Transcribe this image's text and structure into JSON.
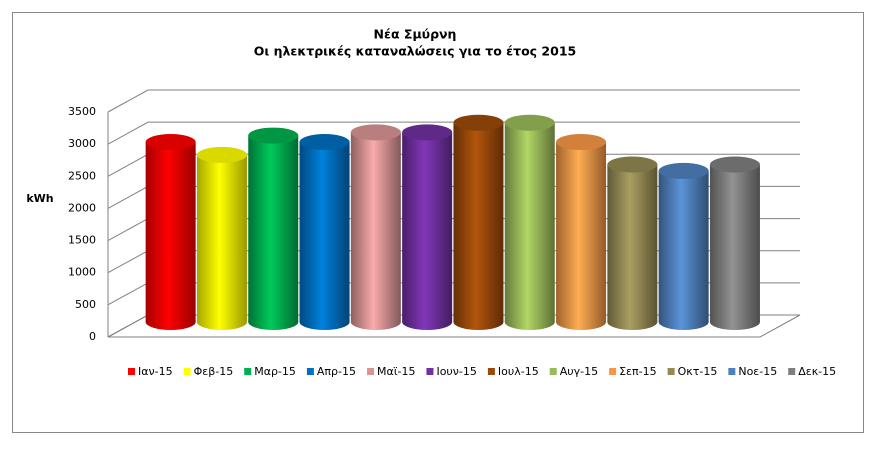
{
  "chart_data": {
    "type": "bar",
    "title": "Νέα Σμύρνη",
    "subtitle": "Οι ηλεκτρικές καταναλώσεις για το έτος 2015",
    "y_label": "kWh",
    "categories": [
      "Ιαν-15",
      "Φεβ-15",
      "Μαρ-15",
      "Απρ-15",
      "Μαϊ-15",
      "Ιουν-15",
      "Ιουλ-15",
      "Αυγ-15",
      "Σεπ-15",
      "Οκτ-15",
      "Νοε-15",
      "Δεκ-15"
    ],
    "values": [
      2800,
      2600,
      2900,
      2800,
      2950,
      2950,
      3100,
      3100,
      2800,
      2450,
      2350,
      2450
    ],
    "colors": [
      "#ff0000",
      "#ffff00",
      "#00b050",
      "#0070c0",
      "#d99594",
      "#7030a0",
      "#9c4a0a",
      "#9bbb59",
      "#f79646",
      "#948a54",
      "#4f81bd",
      "#7f7f7f"
    ],
    "ylim": [
      0,
      3500
    ],
    "yticks": [
      0,
      500,
      1000,
      1500,
      2000,
      2500,
      3000,
      3500
    ],
    "grid": true,
    "legend": "bottom"
  }
}
